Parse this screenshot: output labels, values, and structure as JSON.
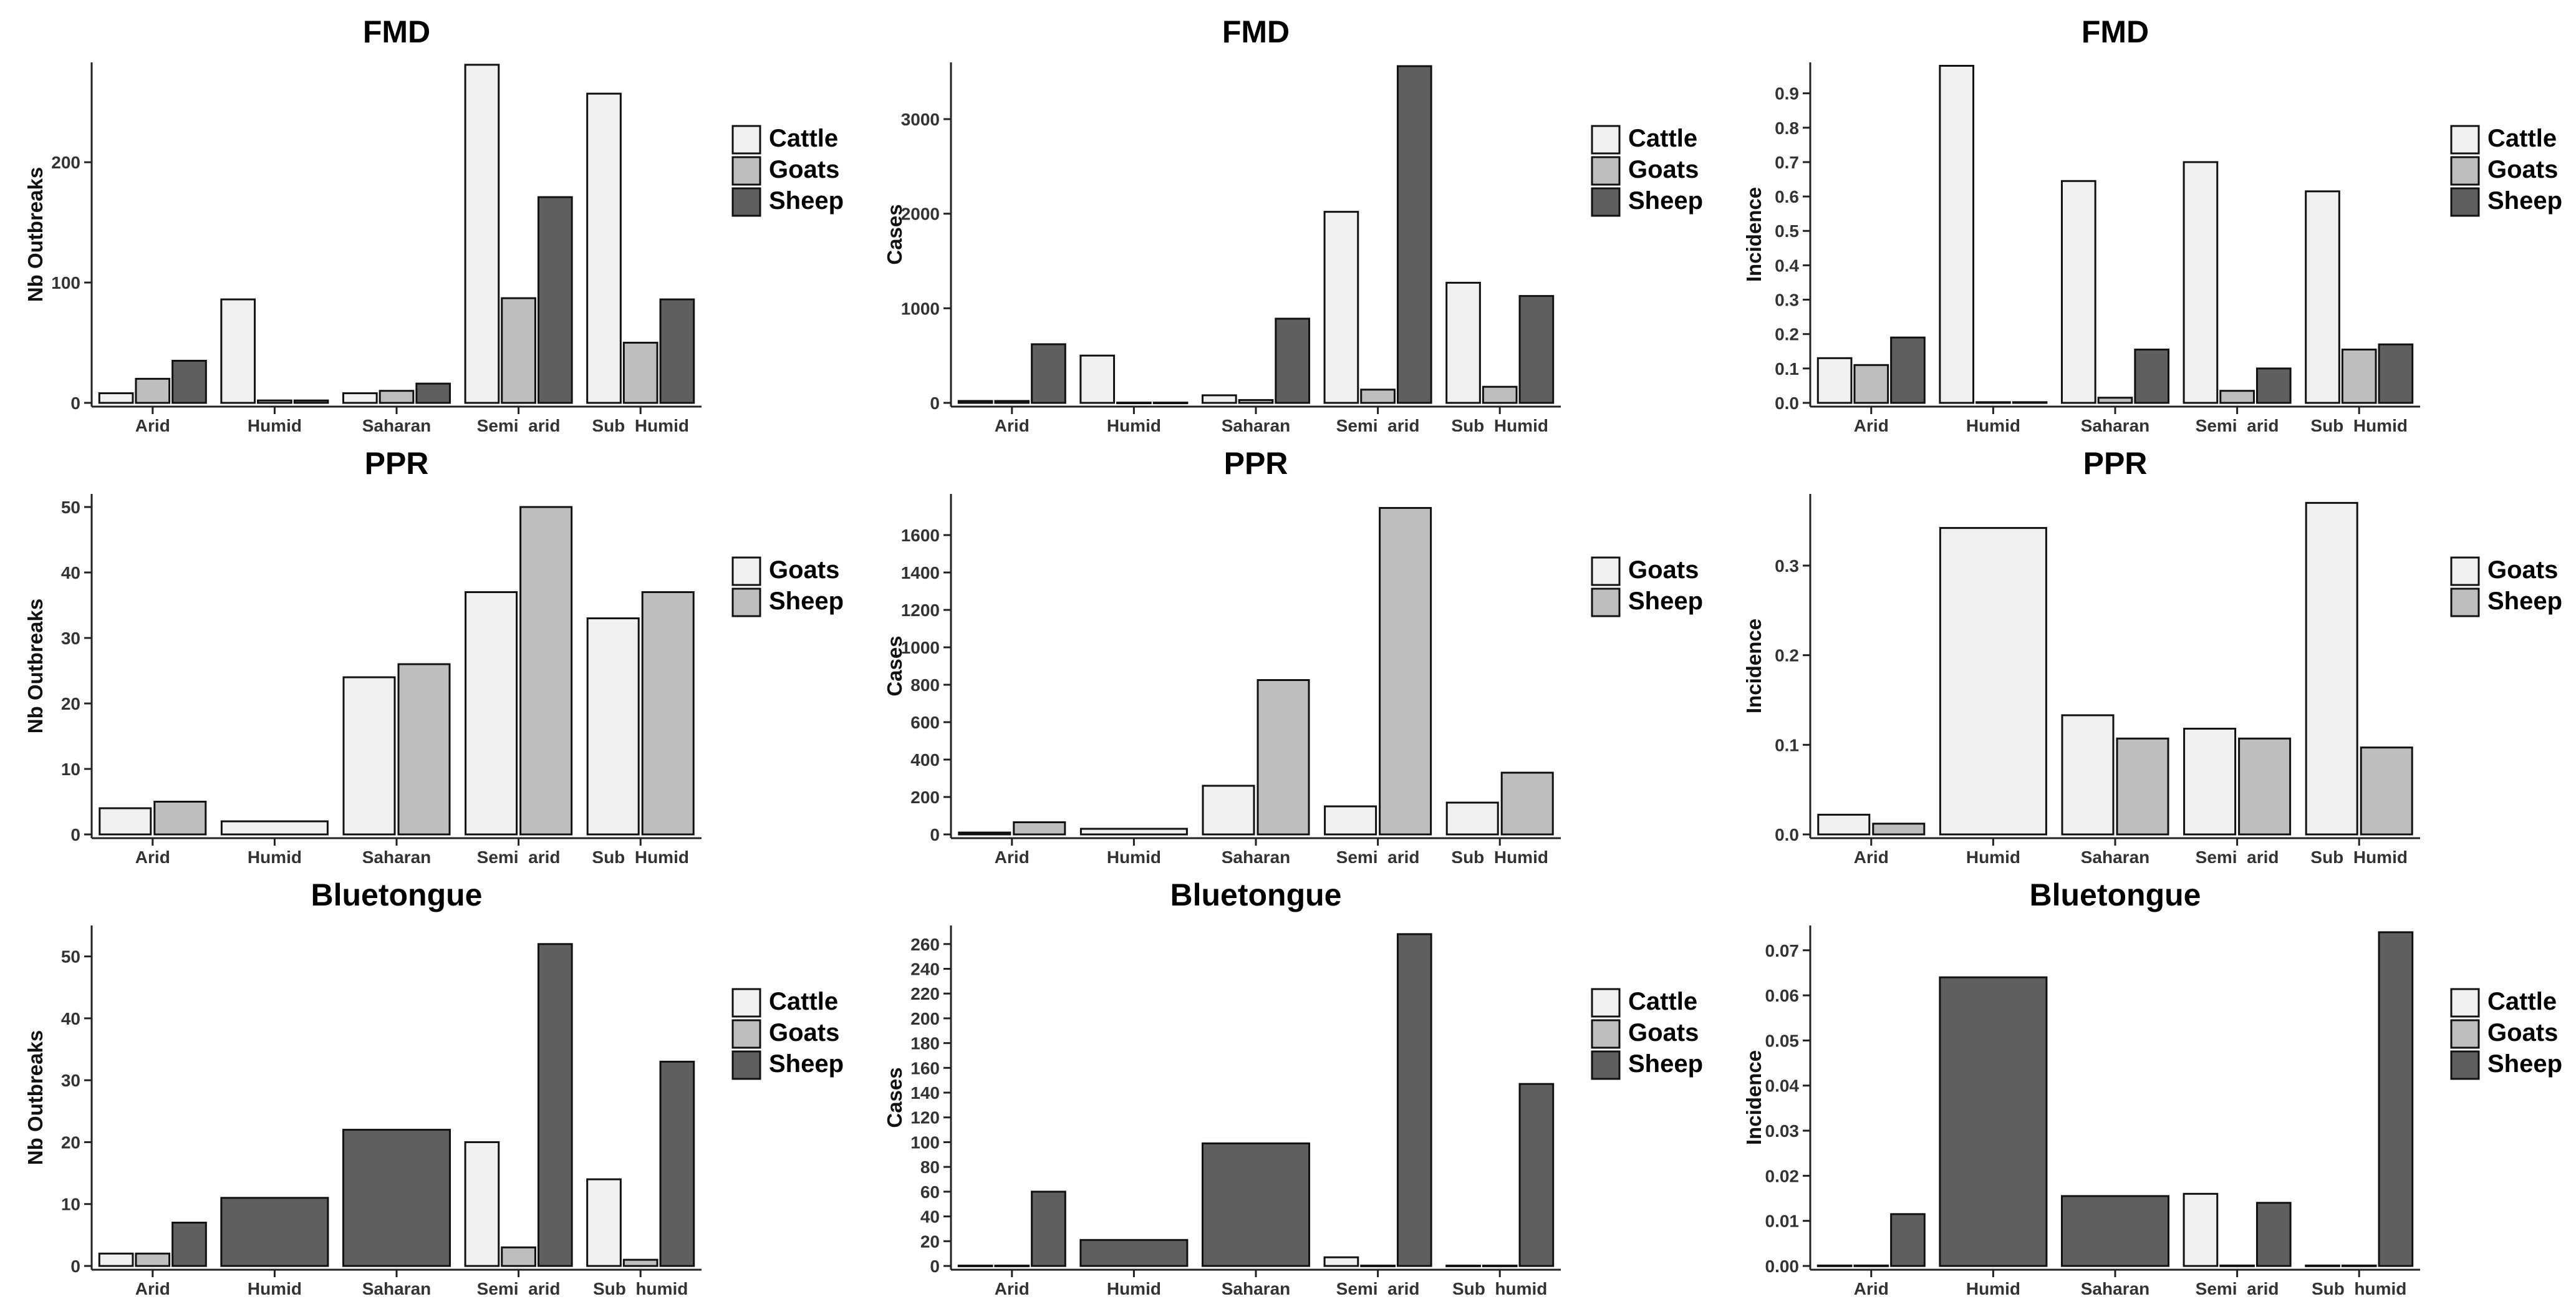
{
  "colors": {
    "Cattle": "#f0f0f0",
    "Goats": "#bebebe",
    "Sheep": "#5f5f5f",
    "stroke": "#111111",
    "axis": "#222222"
  },
  "chart_data": [
    {
      "type": "bar",
      "title": "FMD",
      "ylabel": "Nb Outbreaks",
      "categories": [
        "Arid",
        "Humid",
        "Saharan",
        "Semi_arid",
        "Sub_Humid"
      ],
      "legend": [
        "Cattle",
        "Goats",
        "Sheep"
      ],
      "series": [
        {
          "name": "Cattle",
          "color": "#f0f0f0",
          "values": [
            8,
            86,
            8,
            281,
            257
          ]
        },
        {
          "name": "Goats",
          "color": "#bebebe",
          "values": [
            20,
            2,
            10,
            87,
            50
          ]
        },
        {
          "name": "Sheep",
          "color": "#5f5f5f",
          "values": [
            35,
            2,
            16,
            171,
            86
          ]
        }
      ],
      "ylim": [
        0,
        283
      ],
      "yticks": [
        "0",
        "100",
        "200"
      ],
      "ytickvals": [
        0,
        100,
        200
      ]
    },
    {
      "type": "bar",
      "title": "FMD",
      "ylabel": "Cases",
      "categories": [
        "Arid",
        "Humid",
        "Saharan",
        "Semi_arid",
        "Sub_Humid"
      ],
      "legend": [
        "Cattle",
        "Goats",
        "Sheep"
      ],
      "series": [
        {
          "name": "Cattle",
          "color": "#f0f0f0",
          "values": [
            20,
            500,
            80,
            2020,
            1270
          ]
        },
        {
          "name": "Goats",
          "color": "#bebebe",
          "values": [
            20,
            3,
            30,
            140,
            170
          ]
        },
        {
          "name": "Sheep",
          "color": "#5f5f5f",
          "values": [
            620,
            3,
            890,
            3560,
            1130
          ]
        }
      ],
      "ylim": [
        0,
        3600
      ],
      "yticks": [
        "0",
        "1000",
        "2000",
        "3000"
      ],
      "ytickvals": [
        0,
        1000,
        2000,
        3000
      ]
    },
    {
      "type": "bar",
      "title": "FMD",
      "ylabel": "Incidence",
      "categories": [
        "Arid",
        "Humid",
        "Saharan",
        "Semi_arid",
        "Sub_Humid"
      ],
      "legend": [
        "Cattle",
        "Goats",
        "Sheep"
      ],
      "series": [
        {
          "name": "Cattle",
          "color": "#f0f0f0",
          "values": [
            0.13,
            0.98,
            0.645,
            0.7,
            0.615
          ]
        },
        {
          "name": "Goats",
          "color": "#bebebe",
          "values": [
            0.11,
            0.002,
            0.015,
            0.035,
            0.155
          ]
        },
        {
          "name": "Sheep",
          "color": "#5f5f5f",
          "values": [
            0.19,
            0.002,
            0.155,
            0.1,
            0.17
          ]
        }
      ],
      "ylim": [
        0,
        0.99
      ],
      "yticks": [
        "0.0",
        "0.1",
        "0.2",
        "0.3",
        "0.4",
        "0.5",
        "0.6",
        "0.7",
        "0.8",
        "0.9"
      ],
      "ytickvals": [
        0,
        0.1,
        0.2,
        0.3,
        0.4,
        0.5,
        0.6,
        0.7,
        0.8,
        0.9
      ]
    },
    {
      "type": "bar",
      "title": "PPR",
      "ylabel": "Nb Outbreaks",
      "categories": [
        "Arid",
        "Humid",
        "Saharan",
        "Semi_arid",
        "Sub_Humid"
      ],
      "legend": [
        "Goats",
        "Sheep"
      ],
      "series": [
        {
          "name": "Goats",
          "color": "#f0f0f0",
          "values": [
            4,
            2,
            24,
            37,
            33
          ]
        },
        {
          "name": "Sheep",
          "color": "#bebebe",
          "values": [
            5,
            null,
            26,
            50,
            37
          ]
        }
      ],
      "ylim": [
        0,
        52
      ],
      "yticks": [
        "0",
        "10",
        "20",
        "30",
        "40",
        "50"
      ],
      "ytickvals": [
        0,
        10,
        20,
        30,
        40,
        50
      ]
    },
    {
      "type": "bar",
      "title": "PPR",
      "ylabel": "Cases",
      "categories": [
        "Arid",
        "Humid",
        "Saharan",
        "Semi_arid",
        "Sub_Humid"
      ],
      "legend": [
        "Goats",
        "Sheep"
      ],
      "series": [
        {
          "name": "Goats",
          "color": "#f0f0f0",
          "values": [
            10,
            30,
            260,
            150,
            170
          ]
        },
        {
          "name": "Sheep",
          "color": "#bebebe",
          "values": [
            65,
            null,
            825,
            1745,
            330
          ]
        }
      ],
      "ylim": [
        0,
        1820
      ],
      "yticks": [
        "0",
        "200",
        "400",
        "600",
        "800",
        "1000",
        "1200",
        "1400",
        "1600"
      ],
      "ytickvals": [
        0,
        200,
        400,
        600,
        800,
        1000,
        1200,
        1400,
        1600
      ]
    },
    {
      "type": "bar",
      "title": "PPR",
      "ylabel": "Incidence",
      "categories": [
        "Arid",
        "Humid",
        "Saharan",
        "Semi_arid",
        "Sub_Humid"
      ],
      "legend": [
        "Goats",
        "Sheep"
      ],
      "series": [
        {
          "name": "Goats",
          "color": "#f0f0f0",
          "values": [
            0.022,
            0.342,
            0.133,
            0.118,
            0.37
          ]
        },
        {
          "name": "Sheep",
          "color": "#bebebe",
          "values": [
            0.012,
            null,
            0.107,
            0.107,
            0.097
          ]
        }
      ],
      "ylim": [
        0,
        0.38
      ],
      "yticks": [
        "0.0",
        "0.1",
        "0.2",
        "0.3"
      ],
      "ytickvals": [
        0,
        0.1,
        0.2,
        0.3
      ]
    },
    {
      "type": "bar",
      "title": "Bluetongue",
      "ylabel": "Nb Outbreaks",
      "categories": [
        "Arid",
        "Humid",
        "Saharan",
        "Semi_arid",
        "Sub_humid"
      ],
      "legend": [
        "Cattle",
        "Goats",
        "Sheep"
      ],
      "series": [
        {
          "name": "Cattle",
          "color": "#f0f0f0",
          "values": [
            2,
            null,
            null,
            20,
            14
          ]
        },
        {
          "name": "Goats",
          "color": "#bebebe",
          "values": [
            2,
            null,
            null,
            3,
            1
          ]
        },
        {
          "name": "Sheep",
          "color": "#5f5f5f",
          "values": [
            7,
            11,
            22,
            52,
            33
          ]
        }
      ],
      "ylim": [
        0,
        55
      ],
      "yticks": [
        "0",
        "10",
        "20",
        "30",
        "40",
        "50"
      ],
      "ytickvals": [
        0,
        10,
        20,
        30,
        40,
        50
      ]
    },
    {
      "type": "bar",
      "title": "Bluetongue",
      "ylabel": "Cases",
      "categories": [
        "Arid",
        "Humid",
        "Saharan",
        "Semi_arid",
        "Sub_humid"
      ],
      "legend": [
        "Cattle",
        "Goats",
        "Sheep"
      ],
      "series": [
        {
          "name": "Cattle",
          "color": "#f0f0f0",
          "values": [
            0.3,
            null,
            null,
            7,
            0.3
          ]
        },
        {
          "name": "Goats",
          "color": "#bebebe",
          "values": [
            0.3,
            null,
            null,
            0.3,
            0.3
          ]
        },
        {
          "name": "Sheep",
          "color": "#5f5f5f",
          "values": [
            60,
            21,
            99,
            268,
            147
          ]
        }
      ],
      "ylim": [
        0,
        275
      ],
      "yticks": [
        "0",
        "20",
        "40",
        "60",
        "80",
        "100",
        "120",
        "140",
        "160",
        "180",
        "200",
        "220",
        "240",
        "260"
      ],
      "ytickvals": [
        0,
        20,
        40,
        60,
        80,
        100,
        120,
        140,
        160,
        180,
        200,
        220,
        240,
        260
      ]
    },
    {
      "type": "bar",
      "title": "Bluetongue",
      "ylabel": "Incidence",
      "categories": [
        "Arid",
        "Humid",
        "Saharan",
        "Semi_arid",
        "Sub_humid"
      ],
      "legend": [
        "Cattle",
        "Goats",
        "Sheep"
      ],
      "series": [
        {
          "name": "Cattle",
          "color": "#f0f0f0",
          "values": [
            0.0001,
            null,
            null,
            0.016,
            0.0001
          ]
        },
        {
          "name": "Goats",
          "color": "#bebebe",
          "values": [
            0.0001,
            null,
            null,
            0.0001,
            0.0001
          ]
        },
        {
          "name": "Sheep",
          "color": "#5f5f5f",
          "values": [
            0.0115,
            0.064,
            0.0155,
            0.014,
            0.074
          ]
        }
      ],
      "ylim": [
        0,
        0.0755
      ],
      "yticks": [
        "0.00",
        "0.01",
        "0.02",
        "0.03",
        "0.04",
        "0.05",
        "0.06",
        "0.07"
      ],
      "ytickvals": [
        0,
        0.01,
        0.02,
        0.03,
        0.04,
        0.05,
        0.06,
        0.07
      ]
    }
  ]
}
